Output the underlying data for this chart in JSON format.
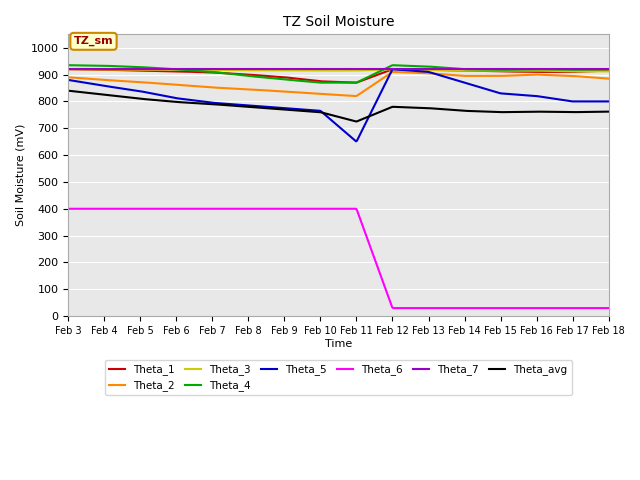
{
  "title": "TZ Soil Moisture",
  "xlabel": "Time",
  "ylabel": "Soil Moisture (mV)",
  "ylim": [
    0,
    1050
  ],
  "yticks": [
    0,
    100,
    200,
    300,
    400,
    500,
    600,
    700,
    800,
    900,
    1000
  ],
  "bg_color": "#e8e8e8",
  "annotation_text": "TZ_sm",
  "annotation_box_color": "#ffffcc",
  "annotation_border_color": "#cc8800",
  "annotation_text_color": "#990000",
  "legend_entries": [
    "Theta_1",
    "Theta_2",
    "Theta_3",
    "Theta_4",
    "Theta_5",
    "Theta_6",
    "Theta_7",
    "Theta_avg"
  ],
  "line_colors": {
    "Theta_1": "#cc0000",
    "Theta_2": "#ff8800",
    "Theta_3": "#cccc00",
    "Theta_4": "#00aa00",
    "Theta_5": "#0000cc",
    "Theta_6": "#ff00ff",
    "Theta_7": "#9900cc",
    "Theta_avg": "#000000"
  },
  "xticklabels": [
    "Feb 3",
    "Feb 4",
    "Feb 5",
    "Feb 6",
    "Feb 7",
    "Feb 8",
    "Feb 9",
    "Feb 10",
    "Feb 11",
    "Feb 12",
    "Feb 13",
    "Feb 14",
    "Feb 15",
    "Feb 16",
    "Feb 17",
    "Feb 18"
  ],
  "num_points": 16,
  "lines": {
    "Theta_1": [
      920,
      918,
      915,
      912,
      908,
      900,
      890,
      875,
      870,
      920,
      918,
      915,
      912,
      910,
      910,
      915
    ],
    "Theta_2": [
      890,
      880,
      872,
      862,
      852,
      845,
      837,
      828,
      820,
      910,
      905,
      895,
      895,
      900,
      895,
      885
    ],
    "Theta_3": [
      920,
      919,
      918,
      918,
      917,
      916,
      916,
      915,
      915,
      920,
      917,
      915,
      915,
      915,
      912,
      912
    ],
    "Theta_4": [
      935,
      933,
      928,
      920,
      910,
      895,
      882,
      870,
      870,
      935,
      930,
      920,
      918,
      920,
      918,
      920
    ],
    "Theta_5": [
      880,
      858,
      838,
      812,
      795,
      785,
      775,
      765,
      650,
      920,
      910,
      870,
      830,
      820,
      800,
      800
    ],
    "Theta_6": [
      400,
      400,
      400,
      400,
      400,
      400,
      400,
      400,
      400,
      30,
      30,
      30,
      30,
      30,
      30,
      30
    ],
    "Theta_7": [
      920,
      920,
      920,
      920,
      920,
      920,
      920,
      920,
      920,
      920,
      920,
      920,
      920,
      920,
      920,
      920
    ],
    "Theta_avg": [
      840,
      825,
      810,
      798,
      790,
      780,
      770,
      760,
      725,
      780,
      775,
      765,
      760,
      762,
      760,
      762
    ]
  }
}
